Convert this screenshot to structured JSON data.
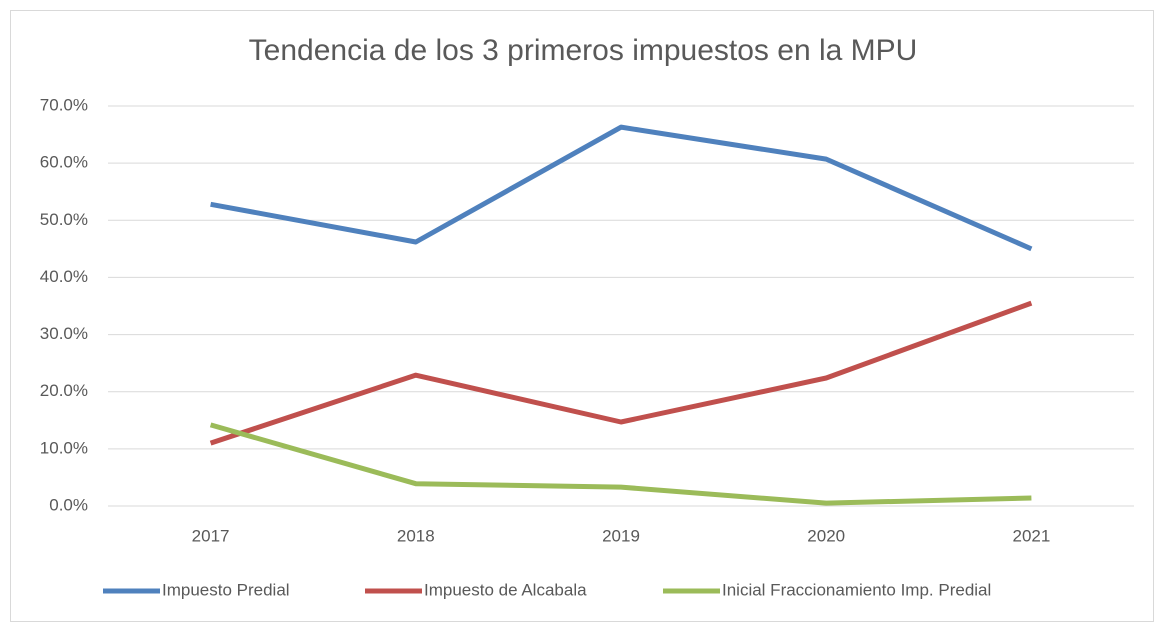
{
  "chart_data": {
    "type": "line",
    "title": "Tendencia de los 3 primeros impuestos en la MPU",
    "categories": [
      "2017",
      "2018",
      "2019",
      "2020",
      "2021"
    ],
    "series": [
      {
        "name": "Impuesto Predial",
        "color": "#4f81bd",
        "values": [
          52.8,
          46.2,
          66.3,
          60.7,
          45.0
        ]
      },
      {
        "name": "Impuesto de Alcabala",
        "color": "#c0504d",
        "values": [
          11.0,
          22.9,
          14.7,
          22.4,
          35.5
        ]
      },
      {
        "name": "Inicial Fraccionamiento Imp. Predial",
        "color": "#9bbb59",
        "values": [
          14.2,
          3.9,
          3.3,
          0.5,
          1.4
        ]
      }
    ],
    "ylim": [
      0,
      70
    ],
    "yticks": [
      {
        "value": 0,
        "label": "0.0%"
      },
      {
        "value": 10,
        "label": "10.0%"
      },
      {
        "value": 20,
        "label": "20.0%"
      },
      {
        "value": 30,
        "label": "30.0%"
      },
      {
        "value": 40,
        "label": "40.0%"
      },
      {
        "value": 50,
        "label": "50.0%"
      },
      {
        "value": 60,
        "label": "60.0%"
      },
      {
        "value": 70,
        "label": "70.0%"
      }
    ],
    "grid": true,
    "legend": "bottom"
  }
}
